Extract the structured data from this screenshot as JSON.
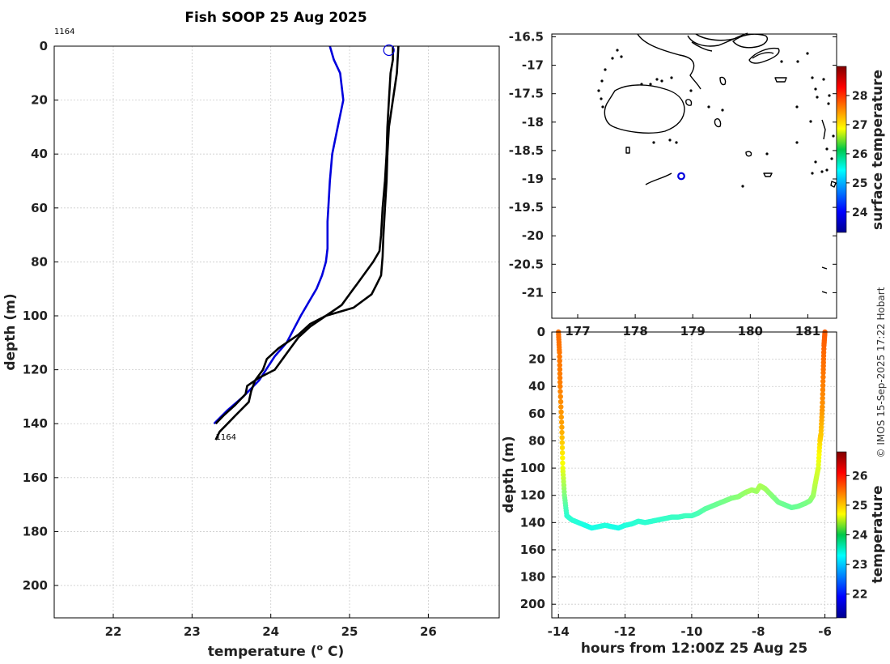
{
  "colors": {
    "model": "#0000dd",
    "observed": "#000000",
    "grid": "#cccccc",
    "marker": "#0000dd"
  },
  "chart_data": [
    {
      "type": "line",
      "name": "temperature-profile",
      "title": "Fish SOOP 25 Aug 2025",
      "xlabel": "temperature (o C)",
      "xlabel_main": "temperature (",
      "xlabel_sup": "o",
      "xlabel_tail": " C)",
      "ylabel": "depth (m)",
      "xlim": [
        21.25,
        26.9
      ],
      "ylim": [
        0,
        212
      ],
      "xticks": [
        22,
        23,
        24,
        25,
        26
      ],
      "yticks": [
        0,
        20,
        40,
        60,
        80,
        100,
        120,
        140,
        160,
        180,
        200
      ],
      "grid": true,
      "annotations": [
        {
          "text": "1164",
          "t": 21.25,
          "d": -4.5
        },
        {
          "text": "1164",
          "t": 23.3,
          "d": 146
        }
      ],
      "marker": {
        "t": 25.5,
        "d": 1.5
      },
      "series": [
        {
          "name": "model-profile",
          "color": "#0000dd",
          "t": [
            24.75,
            24.8,
            24.88,
            24.92,
            24.85,
            24.78,
            24.75,
            24.73,
            24.72,
            24.72,
            24.72,
            24.7,
            24.65,
            24.58,
            24.48,
            24.38,
            24.2,
            24.05,
            23.85,
            23.65,
            23.45,
            23.28
          ],
          "d": [
            0,
            5,
            10,
            20,
            30,
            40,
            50,
            60,
            65,
            70,
            75,
            80,
            85,
            90,
            95,
            100,
            110,
            115,
            124,
            130,
            135,
            140
          ]
        },
        {
          "name": "observed-downcast",
          "color": "#000000",
          "t": [
            25.62,
            25.6,
            25.55,
            25.5,
            25.48,
            25.47,
            25.45,
            25.43,
            25.42,
            25.4,
            25.35,
            25.28,
            25.05,
            24.7,
            24.5,
            24.35,
            24.1,
            23.95,
            23.9,
            23.8,
            23.75,
            23.72,
            23.55,
            23.45,
            23.35,
            23.3
          ],
          "d": [
            0,
            10,
            20,
            30,
            40,
            50,
            60,
            70,
            78,
            85,
            88,
            92,
            97,
            100,
            103,
            107,
            112,
            116,
            120,
            124,
            128,
            132,
            137,
            140,
            143,
            146
          ]
        },
        {
          "name": "observed-upcast",
          "color": "#000000",
          "t": [
            23.3,
            23.4,
            23.55,
            23.68,
            23.7,
            23.85,
            24.05,
            24.15,
            24.25,
            24.35,
            24.5,
            24.7,
            24.9,
            25.0,
            25.05,
            25.1,
            25.2,
            25.3,
            25.38,
            25.4,
            25.42,
            25.45,
            25.47,
            25.48,
            25.5,
            25.52,
            25.55,
            25.55
          ],
          "d": [
            140,
            137,
            133,
            129,
            126,
            123,
            120,
            116,
            112,
            108,
            104,
            100,
            96,
            92,
            90,
            88,
            84,
            80,
            76,
            70,
            60,
            50,
            40,
            30,
            20,
            10,
            5,
            0
          ]
        }
      ]
    },
    {
      "type": "map",
      "name": "location-map",
      "xlim": [
        176.55,
        181.5
      ],
      "ylim": [
        -21.45,
        -16.45
      ],
      "xticks": [
        177,
        178,
        179,
        180,
        181
      ],
      "yticks": [
        -16.5,
        -17,
        -17.5,
        -18,
        -18.5,
        -19,
        -19.5,
        -20,
        -20.5,
        -21
      ],
      "ytick_labels": [
        "-16.5",
        "-17",
        "-17.5",
        "-18",
        "-18.5",
        "-19",
        "-19.5",
        "-20",
        "-20.5",
        "-21"
      ],
      "colorbar": {
        "label": "surface temperature",
        "range": [
          23.3,
          29.0
        ],
        "ticks": [
          24,
          25,
          26,
          27,
          28
        ]
      },
      "marker": {
        "lon": 178.8,
        "lat": -18.95
      }
    },
    {
      "type": "scatter",
      "name": "depth-time-track",
      "xlabel": "hours from 12:00Z 25 Aug 25",
      "ylabel": "depth (m)",
      "xlim": [
        -14.2,
        -5.65
      ],
      "ylim": [
        0,
        210
      ],
      "xticks": [
        -14,
        -12,
        -10,
        -8,
        -6
      ],
      "yticks": [
        0,
        20,
        40,
        60,
        80,
        100,
        120,
        140,
        160,
        180,
        200
      ],
      "colorbar": {
        "label": "temperature",
        "range": [
          21.2,
          26.8
        ],
        "ticks": [
          22,
          23,
          24,
          25,
          26
        ]
      },
      "x": [
        -14.0,
        -13.97,
        -13.95,
        -13.9,
        -13.87,
        -13.82,
        -13.75,
        -13.6,
        -13.4,
        -13.2,
        -13.0,
        -12.8,
        -12.6,
        -12.4,
        -12.2,
        -12.0,
        -11.8,
        -11.6,
        -11.4,
        -11.2,
        -11.0,
        -10.8,
        -10.6,
        -10.4,
        -10.2,
        -10.0,
        -9.8,
        -9.6,
        -9.4,
        -9.2,
        -9.0,
        -8.8,
        -8.6,
        -8.4,
        -8.2,
        -8.05,
        -7.95,
        -7.8,
        -7.6,
        -7.4,
        -7.2,
        -7.0,
        -6.8,
        -6.6,
        -6.45,
        -6.35,
        -6.28,
        -6.2,
        -6.15,
        -6.12,
        -6.08,
        -6.05,
        -6.03,
        -6.0
      ],
      "y": [
        0,
        15,
        40,
        70,
        100,
        120,
        135,
        138,
        140,
        142,
        144,
        143,
        142,
        143,
        144,
        142,
        141,
        139,
        140,
        139,
        138,
        137,
        136,
        136,
        135,
        135,
        133,
        130,
        128,
        126,
        124,
        122,
        121,
        118,
        116,
        117,
        113,
        115,
        120,
        125,
        127,
        129,
        128,
        126,
        124,
        120,
        110,
        100,
        80,
        75,
        55,
        30,
        10,
        0
      ],
      "t": [
        25.5,
        25.45,
        25.4,
        25.2,
        24.6,
        24.0,
        23.55,
        23.55,
        23.5,
        23.45,
        23.42,
        23.45,
        23.5,
        23.45,
        23.42,
        23.48,
        23.52,
        23.55,
        23.55,
        23.55,
        23.58,
        23.6,
        23.62,
        23.62,
        23.65,
        23.65,
        23.7,
        23.8,
        23.85,
        23.9,
        23.95,
        24.0,
        24.05,
        24.12,
        24.2,
        24.15,
        24.25,
        24.2,
        24.05,
        23.95,
        23.9,
        23.85,
        23.9,
        23.95,
        24.0,
        24.15,
        24.35,
        24.5,
        24.9,
        25.0,
        25.3,
        25.45,
        25.55,
        25.6
      ]
    }
  ],
  "credit": "© IMOS 15-Sep-2025 17:22 Hobart"
}
